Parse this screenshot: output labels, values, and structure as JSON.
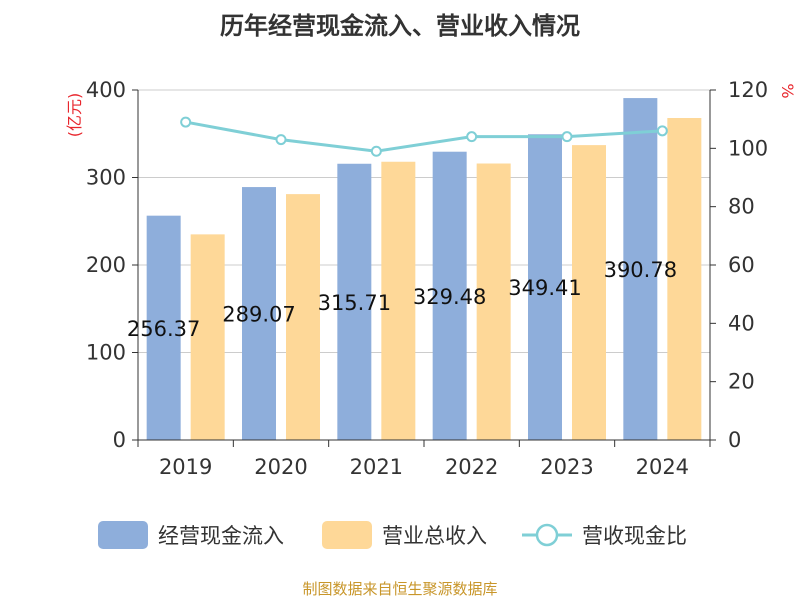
{
  "title": "历年经营现金流入、营业收入情况",
  "source": "制图数据来自恒生聚源数据库",
  "colors": {
    "cash_inflow": "#8eaedb",
    "revenue": "#fed898",
    "ratio": "#7fcfd6",
    "grid": "#cccccc",
    "unit": "#e8262d",
    "source": "#c8962a"
  },
  "chart_data": {
    "type": "bar",
    "title": "历年经营现金流入、营业收入情况",
    "categories": [
      "2019",
      "2020",
      "2021",
      "2022",
      "2023",
      "2024"
    ],
    "left_axis": {
      "unit": "(亿元)",
      "range": [
        0,
        400
      ],
      "ticks": [
        "0",
        "100",
        "200",
        "300",
        "400"
      ]
    },
    "right_axis": {
      "unit": "%",
      "range": [
        0,
        120
      ],
      "ticks": [
        "0",
        "20",
        "40",
        "60",
        "80",
        "100",
        "120"
      ]
    },
    "series": [
      {
        "name": "经营现金流入",
        "type": "bar",
        "axis": "left",
        "values": [
          256.37,
          289.07,
          315.71,
          329.48,
          349.41,
          390.78
        ],
        "labels": [
          "256.37",
          "289.07",
          "315.71",
          "329.48",
          "349.41",
          "390.78"
        ]
      },
      {
        "name": "营业总收入",
        "type": "bar",
        "axis": "left",
        "values": [
          235,
          281,
          318,
          316,
          337,
          368
        ]
      },
      {
        "name": "营收现金比",
        "type": "line",
        "axis": "right",
        "values": [
          109,
          103,
          99,
          104,
          104,
          106
        ]
      }
    ],
    "grid": true,
    "legend_position": "bottom"
  }
}
